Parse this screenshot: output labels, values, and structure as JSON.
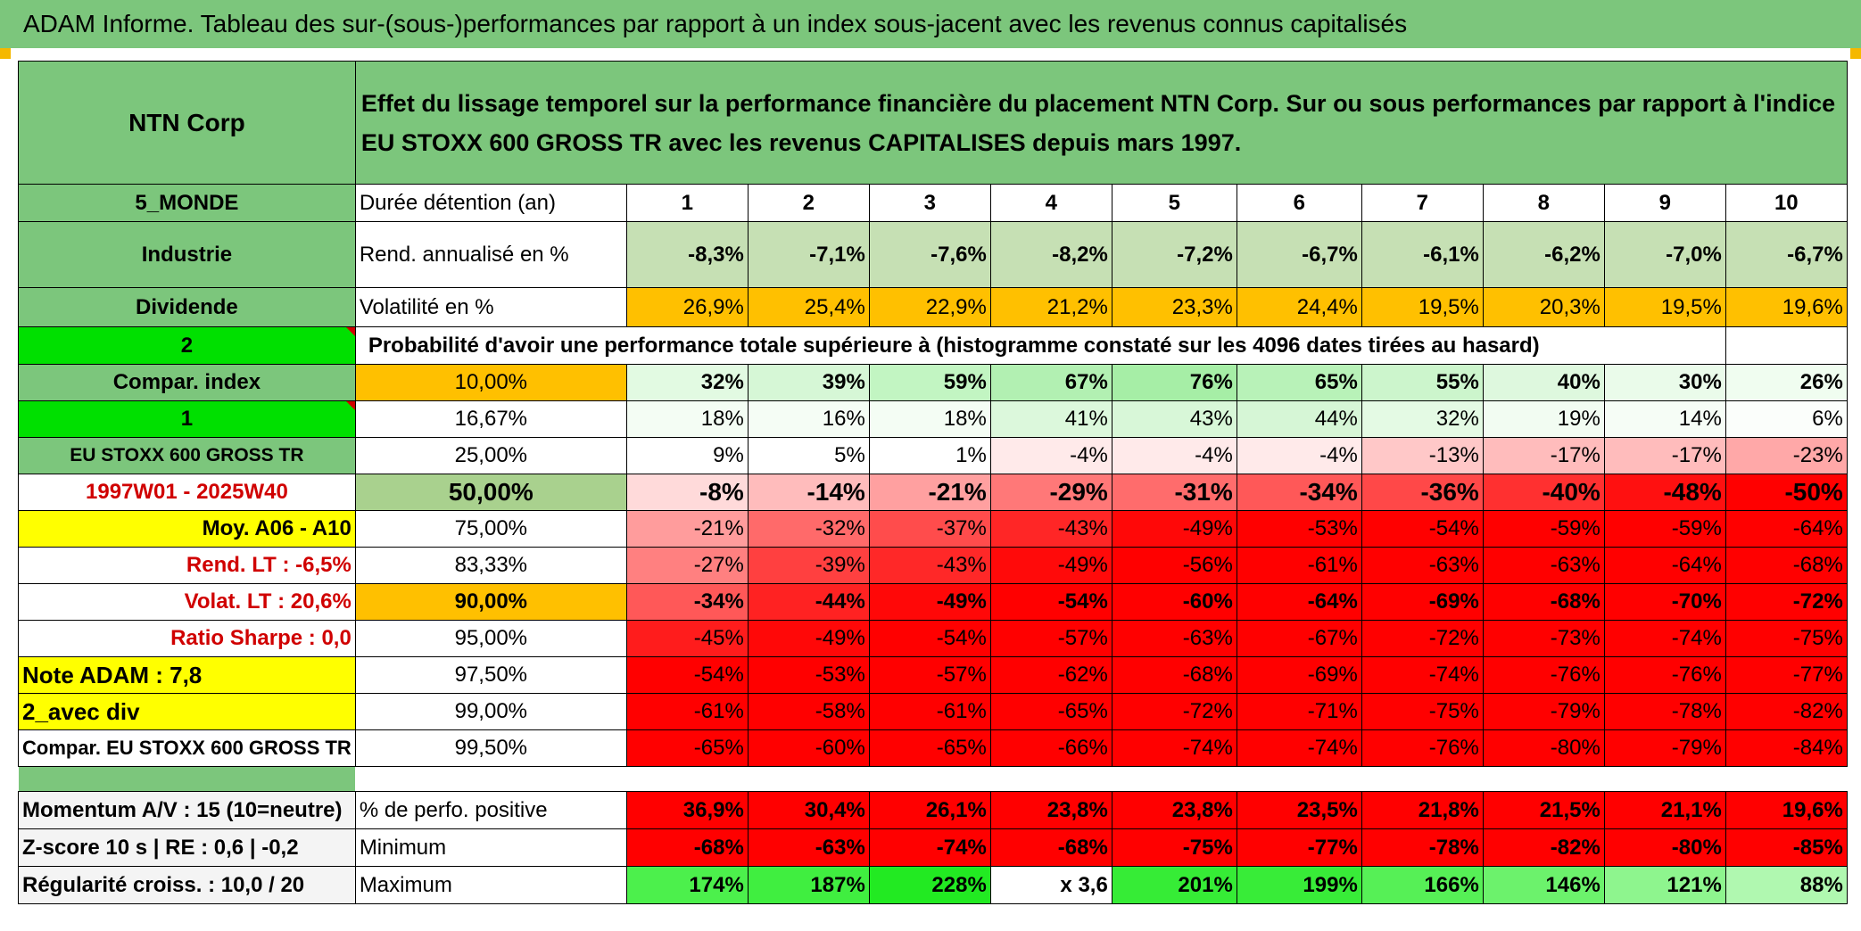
{
  "title": "ADAM Informe. Tableau des sur-(sous-)performances par rapport à un index sous-jacent avec les revenus connus capitalisés",
  "company": "NTN Corp",
  "description": "Effet du lissage temporel sur la performance financière du placement NTN Corp. Sur ou sous performances par rapport à l'indice EU STOXX 600 GROSS TR avec les revenus CAPITALISES depuis mars 1997.",
  "left_labels": {
    "region": "5_MONDE",
    "sector": "Industrie",
    "dividend": "Dividende",
    "two": "2",
    "compar_index": "Compar. index",
    "one": "1",
    "index_name": "EU STOXX 600 GROSS TR",
    "period": "1997W01 - 2025W40",
    "moy": "Moy. A06 - A10",
    "rend_lt": "Rend. LT :    -6,5%",
    "volat_lt": "Volat. LT :    20,6%",
    "sharpe": "Ratio Sharpe :     0,0",
    "note": "Note ADAM : 7,8",
    "avec_div": "2_avec div",
    "compar": "Compar. EU STOXX 600 GROSS TR"
  },
  "holding_label": "Durée détention (an)",
  "years": [
    "1",
    "2",
    "3",
    "4",
    "5",
    "6",
    "7",
    "8",
    "9",
    "10"
  ],
  "rend_label": "Rend. annualisé en %",
  "rend": [
    "-8,3%",
    "-7,1%",
    "-7,6%",
    "-8,2%",
    "-7,2%",
    "-6,7%",
    "-6,1%",
    "-6,2%",
    "-7,0%",
    "-6,7%"
  ],
  "vol_label": "Volatilité en %",
  "vol": [
    "26,9%",
    "25,4%",
    "22,9%",
    "21,2%",
    "23,3%",
    "24,4%",
    "19,5%",
    "20,3%",
    "19,5%",
    "19,6%"
  ],
  "prob_title": "Probabilité d'avoir une performance totale supérieure à (histogramme constaté sur les 4096 dates tirées au hasard)",
  "prob_rows": [
    {
      "p": "10,00%",
      "v": [
        "32%",
        "39%",
        "59%",
        "67%",
        "76%",
        "65%",
        "55%",
        "40%",
        "30%",
        "26%"
      ],
      "c": [
        "#e2fae2",
        "#d6f7d6",
        "#c2f5c2",
        "#b2f0b2",
        "#a6eea6",
        "#b8f2b8",
        "#ccf5cc",
        "#def8de",
        "#eafbea",
        "#f0fdf0"
      ]
    },
    {
      "p": "16,67%",
      "v": [
        "18%",
        "16%",
        "18%",
        "41%",
        "43%",
        "44%",
        "32%",
        "19%",
        "14%",
        "6%"
      ],
      "c": [
        "#f4fdf4",
        "#f5fdf5",
        "#f4fdf4",
        "#dcf8dc",
        "#d8f7d8",
        "#d6f6d6",
        "#e4fae4",
        "#f2fcf2",
        "#f6fdf6",
        "#fbfefb"
      ]
    },
    {
      "p": "25,00%",
      "v": [
        "9%",
        "5%",
        "1%",
        "-4%",
        "-4%",
        "-4%",
        "-13%",
        "-17%",
        "-17%",
        "-23%"
      ],
      "c": [
        "#ffffff",
        "#ffffff",
        "#ffffff",
        "#ffeaea",
        "#ffeaea",
        "#ffeaea",
        "#ffc8c8",
        "#ffbcbc",
        "#ffbcbc",
        "#ffa8a8"
      ]
    },
    {
      "p": "50,00%",
      "v": [
        "-8%",
        "-14%",
        "-21%",
        "-29%",
        "-31%",
        "-34%",
        "-36%",
        "-40%",
        "-48%",
        "-50%"
      ],
      "c": [
        "#ffdada",
        "#ffbcbc",
        "#ffa0a0",
        "#ff7878",
        "#ff6c6c",
        "#ff5858",
        "#ff4848",
        "#ff3030",
        "#ff1010",
        "#ff0000"
      ]
    },
    {
      "p": "75,00%",
      "v": [
        "-21%",
        "-32%",
        "-37%",
        "-43%",
        "-49%",
        "-53%",
        "-54%",
        "-59%",
        "-59%",
        "-64%"
      ],
      "c": [
        "#ff9c9c",
        "#ff6a6a",
        "#ff4c4c",
        "#ff2626",
        "#ff0808",
        "#ff0000",
        "#ff0000",
        "#ff0000",
        "#ff0000",
        "#ff0000"
      ]
    },
    {
      "p": "83,33%",
      "v": [
        "-27%",
        "-39%",
        "-43%",
        "-49%",
        "-56%",
        "-61%",
        "-63%",
        "-63%",
        "-64%",
        "-68%"
      ],
      "c": [
        "#ff8080",
        "#ff4040",
        "#ff2828",
        "#ff0a0a",
        "#ff0000",
        "#ff0000",
        "#ff0000",
        "#ff0000",
        "#ff0000",
        "#ff0000"
      ]
    },
    {
      "p": "90,00%",
      "v": [
        "-34%",
        "-44%",
        "-49%",
        "-54%",
        "-60%",
        "-64%",
        "-69%",
        "-68%",
        "-70%",
        "-72%"
      ],
      "c": [
        "#ff5858",
        "#ff2222",
        "#ff0808",
        "#ff0000",
        "#ff0000",
        "#ff0000",
        "#ff0000",
        "#ff0000",
        "#ff0000",
        "#ff0000"
      ]
    },
    {
      "p": "95,00%",
      "v": [
        "-45%",
        "-49%",
        "-54%",
        "-57%",
        "-63%",
        "-67%",
        "-72%",
        "-73%",
        "-74%",
        "-75%"
      ],
      "c": [
        "#ff1c1c",
        "#ff0808",
        "#ff0000",
        "#ff0000",
        "#ff0000",
        "#ff0000",
        "#ff0000",
        "#ff0000",
        "#ff0000",
        "#ff0000"
      ]
    },
    {
      "p": "97,50%",
      "v": [
        "-54%",
        "-53%",
        "-57%",
        "-62%",
        "-68%",
        "-69%",
        "-74%",
        "-76%",
        "-76%",
        "-77%"
      ],
      "c": [
        "#ff0000",
        "#ff0000",
        "#ff0000",
        "#ff0000",
        "#ff0000",
        "#ff0000",
        "#ff0000",
        "#ff0000",
        "#ff0000",
        "#ff0000"
      ]
    },
    {
      "p": "99,00%",
      "v": [
        "-61%",
        "-58%",
        "-61%",
        "-65%",
        "-72%",
        "-71%",
        "-75%",
        "-79%",
        "-78%",
        "-82%"
      ],
      "c": [
        "#ff0000",
        "#ff0000",
        "#ff0000",
        "#ff0000",
        "#ff0000",
        "#ff0000",
        "#ff0000",
        "#ff0000",
        "#ff0000",
        "#ff0000"
      ]
    },
    {
      "p": "99,50%",
      "v": [
        "-65%",
        "-60%",
        "-65%",
        "-66%",
        "-74%",
        "-74%",
        "-76%",
        "-80%",
        "-79%",
        "-84%"
      ],
      "c": [
        "#ff0000",
        "#ff0000",
        "#ff0000",
        "#ff0000",
        "#ff0000",
        "#ff0000",
        "#ff0000",
        "#ff0000",
        "#ff0000",
        "#ff0000"
      ]
    }
  ],
  "bottom": {
    "momentum": "Momentum A/V : 15 (10=neutre)",
    "zscore": "Z-score 10 s | RE : 0,6 | -0,2",
    "regularite": "Régularité croiss. : 10,0 / 20",
    "pos_label": "% de perfo. positive",
    "pos": [
      "36,9%",
      "30,4%",
      "26,1%",
      "23,8%",
      "23,8%",
      "23,5%",
      "21,8%",
      "21,5%",
      "21,1%",
      "19,6%"
    ],
    "min_label": "Minimum",
    "min": [
      "-68%",
      "-63%",
      "-74%",
      "-68%",
      "-75%",
      "-77%",
      "-78%",
      "-82%",
      "-80%",
      "-85%"
    ],
    "max_label": "Maximum",
    "max": [
      "174%",
      "187%",
      "228%",
      "x 3,6",
      "201%",
      "199%",
      "166%",
      "146%",
      "121%",
      "88%"
    ],
    "max_colors": [
      "#4cf04c",
      "#40ee40",
      "#22ea22",
      "#ffffff",
      "#36ec36",
      "#38ec38",
      "#56f056",
      "#6cf26c",
      "#8ef58e",
      "#b0f8b0"
    ]
  },
  "colors": {
    "header_green": "#7cc67c",
    "light_green": "#c6e0b4",
    "orange": "#ffc000",
    "yellow": "#ffff00",
    "bright_green": "#00e000",
    "label_red": "#d00000"
  }
}
